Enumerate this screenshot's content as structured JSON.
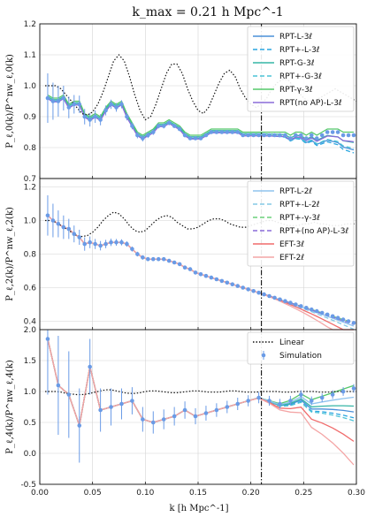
{
  "figure": {
    "title": "k_max = 0.21 h Mpc^-1",
    "xlabel": "k [h Mpc^-1]"
  },
  "chart_data": [
    {
      "type": "line",
      "panel": "monopole",
      "ylabel": "P_ℓ,0(k)/P^nw_ℓ,0(k)",
      "xlim": [
        0.0,
        0.3
      ],
      "ylim": [
        0.7,
        1.2
      ],
      "yticks": [
        0.7,
        0.8,
        0.9,
        1.0,
        1.1,
        1.2
      ],
      "grid": true,
      "vline_x": 0.21,
      "legend": {
        "placement": "top-right",
        "entries": [
          {
            "label": "RPT-L-3ℓ",
            "color": "#4a90d9",
            "dash": "solid"
          },
          {
            "label": "RPT+-L-3ℓ",
            "color": "#2aa6e0",
            "dash": "dashed"
          },
          {
            "label": "RPT-G-3ℓ",
            "color": "#35b5a6",
            "dash": "solid"
          },
          {
            "label": "RPT+-G-3ℓ",
            "color": "#4cc3d6",
            "dash": "dashed"
          },
          {
            "label": "RPT-γ-3ℓ",
            "color": "#55c86a",
            "dash": "solid"
          },
          {
            "label": "RPT(no AP)-L-3ℓ",
            "color": "#8a6bd9",
            "dash": "solid"
          }
        ]
      },
      "linear": {
        "x": [
          0.005,
          0.01,
          0.015,
          0.02,
          0.025,
          0.03,
          0.035,
          0.04,
          0.045,
          0.05,
          0.055,
          0.06,
          0.065,
          0.07,
          0.075,
          0.08,
          0.085,
          0.09,
          0.095,
          0.1,
          0.105,
          0.11,
          0.115,
          0.12,
          0.125,
          0.13,
          0.135,
          0.14,
          0.145,
          0.15,
          0.155,
          0.16,
          0.165,
          0.17,
          0.175,
          0.18,
          0.185,
          0.19,
          0.195,
          0.2,
          0.205,
          0.21,
          0.215,
          0.22,
          0.225,
          0.23,
          0.235,
          0.24,
          0.245,
          0.25,
          0.255,
          0.26,
          0.265,
          0.27,
          0.275,
          0.28,
          0.285,
          0.29,
          0.295,
          0.3
        ],
        "y": [
          1.0,
          1.0,
          1.0,
          0.99,
          0.97,
          0.95,
          0.93,
          0.91,
          0.905,
          0.915,
          0.94,
          0.98,
          1.03,
          1.08,
          1.1,
          1.08,
          1.03,
          0.97,
          0.92,
          0.89,
          0.9,
          0.94,
          0.99,
          1.04,
          1.07,
          1.07,
          1.04,
          0.99,
          0.95,
          0.92,
          0.91,
          0.93,
          0.97,
          1.01,
          1.04,
          1.05,
          1.03,
          0.99,
          0.96,
          0.94,
          0.93,
          0.94,
          0.96,
          0.99,
          1.01,
          1.02,
          1.02,
          1.0,
          0.98,
          0.96,
          0.95,
          0.95,
          0.96,
          0.97,
          0.98,
          0.99,
          0.98,
          0.97,
          0.96,
          0.95
        ]
      },
      "simulation": {
        "x": [
          0.0075,
          0.0125,
          0.0175,
          0.0225,
          0.0275,
          0.0325,
          0.0375,
          0.0425,
          0.0475,
          0.0525,
          0.0575,
          0.0625,
          0.0675,
          0.0725,
          0.0775,
          0.0825,
          0.0875,
          0.0925,
          0.0975,
          0.1025,
          0.1075,
          0.1125,
          0.1175,
          0.1225,
          0.1275,
          0.1325,
          0.1375,
          0.1425,
          0.1475,
          0.1525,
          0.1575,
          0.1625,
          0.1675,
          0.1725,
          0.1775,
          0.1825,
          0.1875,
          0.1925,
          0.1975,
          0.2025,
          0.2075,
          0.2125,
          0.2175,
          0.2225,
          0.2275,
          0.2325,
          0.2375,
          0.2425,
          0.2475,
          0.2525,
          0.2575,
          0.2625,
          0.2675,
          0.2725,
          0.2775,
          0.2825,
          0.2875,
          0.2925,
          0.2975
        ],
        "y": [
          0.96,
          0.95,
          0.95,
          0.96,
          0.93,
          0.94,
          0.94,
          0.9,
          0.89,
          0.9,
          0.89,
          0.92,
          0.94,
          0.93,
          0.94,
          0.9,
          0.87,
          0.84,
          0.83,
          0.84,
          0.85,
          0.87,
          0.87,
          0.88,
          0.87,
          0.86,
          0.84,
          0.83,
          0.83,
          0.83,
          0.84,
          0.85,
          0.85,
          0.85,
          0.85,
          0.85,
          0.85,
          0.84,
          0.84,
          0.84,
          0.84,
          0.84,
          0.84,
          0.84,
          0.84,
          0.84,
          0.83,
          0.84,
          0.84,
          0.83,
          0.84,
          0.83,
          0.84,
          0.85,
          0.85,
          0.85,
          0.84,
          0.84,
          0.84
        ],
        "err": [
          0.08,
          0.06,
          0.05,
          0.04,
          0.035,
          0.03,
          0.028,
          0.025,
          0.022,
          0.02,
          0.018,
          0.016,
          0.015,
          0.014,
          0.013,
          0.012,
          0.011,
          0.01,
          0.01,
          0.009,
          0.009,
          0.008,
          0.008,
          0.008,
          0.007,
          0.007,
          0.007,
          0.006,
          0.006,
          0.006,
          0.006,
          0.005,
          0.005,
          0.005,
          0.005,
          0.005,
          0.005,
          0.005,
          0.005,
          0.005,
          0.005,
          0.005,
          0.005,
          0.005,
          0.005,
          0.005,
          0.005,
          0.005,
          0.005,
          0.005,
          0.005,
          0.005,
          0.005,
          0.005,
          0.005,
          0.005,
          0.005,
          0.005,
          0.005
        ]
      },
      "models": [
        {
          "color": "#4a90d9",
          "dash": "solid",
          "y_base_offset": 0.0,
          "tail": -0.05
        },
        {
          "color": "#2aa6e0",
          "dash": "dashed",
          "y_base_offset": 0.0,
          "tail": -0.06
        },
        {
          "color": "#35b5a6",
          "dash": "solid",
          "y_base_offset": 0.005,
          "tail": -0.03
        },
        {
          "color": "#4cc3d6",
          "dash": "dashed",
          "y_base_offset": 0.0,
          "tail": -0.045
        },
        {
          "color": "#55c86a",
          "dash": "solid",
          "y_base_offset": 0.01,
          "tail": 0.0
        },
        {
          "color": "#8a6bd9",
          "dash": "solid",
          "y_base_offset": -0.002,
          "tail": -0.02
        }
      ]
    },
    {
      "type": "line",
      "panel": "quadrupole",
      "ylabel": "P_ℓ,2(k)/P^nw_ℓ,2(k)",
      "xlim": [
        0.0,
        0.3
      ],
      "ylim": [
        0.35,
        1.25
      ],
      "yticks": [
        0.4,
        0.6,
        0.8,
        1.0,
        1.2
      ],
      "grid": true,
      "vline_x": 0.21,
      "legend": {
        "placement": "top-right",
        "entries": [
          {
            "label": "RPT-L-2ℓ",
            "color": "#8fc3ee",
            "dash": "solid"
          },
          {
            "label": "RPT+-L-2ℓ",
            "color": "#84c9e6",
            "dash": "dashed"
          },
          {
            "label": "RPT+-γ-3ℓ",
            "color": "#6cd07a",
            "dash": "dashed"
          },
          {
            "label": "RPT+(no AP)-L-3ℓ",
            "color": "#8a6bd9",
            "dash": "dashed"
          },
          {
            "label": "EFT-3ℓ",
            "color": "#f06b6b",
            "dash": "solid"
          },
          {
            "label": "EFT-2ℓ",
            "color": "#f4a5a5",
            "dash": "solid"
          }
        ]
      },
      "linear": {
        "x": [
          0.005,
          0.01,
          0.015,
          0.02,
          0.025,
          0.03,
          0.035,
          0.04,
          0.045,
          0.05,
          0.055,
          0.06,
          0.065,
          0.07,
          0.075,
          0.08,
          0.085,
          0.09,
          0.095,
          0.1,
          0.105,
          0.11,
          0.115,
          0.12,
          0.125,
          0.13,
          0.135,
          0.14,
          0.145,
          0.15,
          0.155,
          0.16,
          0.165,
          0.17,
          0.175,
          0.18,
          0.185,
          0.19,
          0.195,
          0.2,
          0.205,
          0.21,
          0.215,
          0.22,
          0.225,
          0.23,
          0.235,
          0.24,
          0.245,
          0.25,
          0.255,
          0.26,
          0.265,
          0.27,
          0.275,
          0.28,
          0.285,
          0.29,
          0.295,
          0.3
        ],
        "y": [
          1.0,
          1.0,
          0.99,
          0.97,
          0.95,
          0.93,
          0.91,
          0.905,
          0.91,
          0.93,
          0.96,
          1.0,
          1.03,
          1.05,
          1.04,
          1.01,
          0.97,
          0.94,
          0.93,
          0.94,
          0.97,
          1.0,
          1.02,
          1.03,
          1.02,
          0.99,
          0.97,
          0.95,
          0.95,
          0.96,
          0.98,
          1.0,
          1.01,
          1.01,
          1.0,
          0.98,
          0.97,
          0.96,
          0.96,
          0.97,
          0.98,
          0.99,
          1.0,
          1.0,
          0.99,
          0.98,
          0.97,
          0.97,
          0.97,
          0.98,
          0.98,
          0.99,
          0.98,
          0.98,
          0.97,
          0.97,
          0.97,
          0.98,
          0.98,
          0.98
        ]
      },
      "simulation": {
        "x": [
          0.0075,
          0.0125,
          0.0175,
          0.0225,
          0.0275,
          0.0325,
          0.0375,
          0.0425,
          0.0475,
          0.0525,
          0.0575,
          0.0625,
          0.0675,
          0.0725,
          0.0775,
          0.0825,
          0.0875,
          0.0925,
          0.0975,
          0.1025,
          0.1075,
          0.1125,
          0.1175,
          0.1225,
          0.1275,
          0.1325,
          0.1375,
          0.1425,
          0.1475,
          0.1525,
          0.1575,
          0.1625,
          0.1675,
          0.1725,
          0.1775,
          0.1825,
          0.1875,
          0.1925,
          0.1975,
          0.2025,
          0.2075,
          0.2125,
          0.2175,
          0.2225,
          0.2275,
          0.2325,
          0.2375,
          0.2425,
          0.2475,
          0.2525,
          0.2575,
          0.2625,
          0.2675,
          0.2725,
          0.2775,
          0.2825,
          0.2875,
          0.2925,
          0.2975
        ],
        "y": [
          1.03,
          1.0,
          0.98,
          0.96,
          0.95,
          0.92,
          0.9,
          0.86,
          0.87,
          0.86,
          0.85,
          0.86,
          0.87,
          0.87,
          0.87,
          0.86,
          0.83,
          0.8,
          0.78,
          0.77,
          0.77,
          0.77,
          0.77,
          0.76,
          0.75,
          0.74,
          0.72,
          0.71,
          0.69,
          0.68,
          0.67,
          0.66,
          0.65,
          0.64,
          0.63,
          0.62,
          0.61,
          0.6,
          0.59,
          0.58,
          0.57,
          0.56,
          0.55,
          0.54,
          0.53,
          0.52,
          0.51,
          0.5,
          0.49,
          0.48,
          0.47,
          0.46,
          0.45,
          0.44,
          0.43,
          0.42,
          0.41,
          0.4,
          0.39
        ],
        "err": [
          0.12,
          0.1,
          0.08,
          0.07,
          0.06,
          0.05,
          0.045,
          0.04,
          0.035,
          0.03,
          0.028,
          0.025,
          0.022,
          0.02,
          0.018,
          0.016,
          0.015,
          0.014,
          0.013,
          0.012,
          0.011,
          0.01,
          0.01,
          0.009,
          0.009,
          0.008,
          0.008,
          0.008,
          0.007,
          0.007,
          0.007,
          0.007,
          0.006,
          0.006,
          0.006,
          0.006,
          0.006,
          0.006,
          0.006,
          0.006,
          0.006,
          0.006,
          0.006,
          0.006,
          0.006,
          0.006,
          0.006,
          0.006,
          0.006,
          0.006,
          0.006,
          0.006,
          0.006,
          0.006,
          0.006,
          0.006,
          0.006,
          0.006,
          0.006
        ]
      },
      "models": [
        {
          "color": "#8fc3ee",
          "dash": "solid",
          "tail": -0.02
        },
        {
          "color": "#84c9e6",
          "dash": "dashed",
          "tail": -0.04
        },
        {
          "color": "#6cd07a",
          "dash": "dashed",
          "tail": 0.0
        },
        {
          "color": "#8a6bd9",
          "dash": "dashed",
          "tail": -0.01
        },
        {
          "color": "#f06b6b",
          "dash": "solid",
          "tail": -0.08
        },
        {
          "color": "#f4a5a5",
          "dash": "solid",
          "tail": -0.14
        }
      ]
    },
    {
      "type": "line",
      "panel": "hexadecapole",
      "ylabel": "P_ℓ,4(k)/P^nw_ℓ,4(k)",
      "xlim": [
        0.0,
        0.3
      ],
      "ylim": [
        -0.5,
        2.0
      ],
      "yticks": [
        -0.5,
        0.0,
        0.5,
        1.0,
        1.5,
        2.0
      ],
      "xticks": [
        0.0,
        0.05,
        0.1,
        0.15,
        0.2,
        0.25,
        0.3
      ],
      "xtick_labels": [
        "0.00",
        "0.05",
        "0.10",
        "0.15",
        "0.20",
        "0.25",
        "0.30"
      ],
      "grid": true,
      "vline_x": 0.21,
      "legend": {
        "placement": "top-right",
        "entries": [
          {
            "label": "Linear",
            "color": "#111111",
            "dash": "dotted",
            "kind": "line"
          },
          {
            "label": "Simulation",
            "color": "#6a9be6",
            "kind": "errorbar"
          }
        ]
      },
      "linear": {
        "x": [
          0.005,
          0.01,
          0.015,
          0.02,
          0.025,
          0.03,
          0.035,
          0.04,
          0.045,
          0.05,
          0.055,
          0.06,
          0.065,
          0.07,
          0.075,
          0.08,
          0.085,
          0.09,
          0.095,
          0.1,
          0.105,
          0.11,
          0.115,
          0.12,
          0.125,
          0.13,
          0.135,
          0.14,
          0.145,
          0.15,
          0.155,
          0.16,
          0.165,
          0.17,
          0.175,
          0.18,
          0.185,
          0.19,
          0.195,
          0.2,
          0.205,
          0.21,
          0.215,
          0.22,
          0.225,
          0.23,
          0.235,
          0.24,
          0.245,
          0.25,
          0.255,
          0.26,
          0.265,
          0.27,
          0.275,
          0.28,
          0.285,
          0.29,
          0.295,
          0.3
        ],
        "y": [
          1.0,
          1.0,
          1.0,
          0.99,
          0.97,
          0.96,
          0.95,
          0.95,
          0.96,
          0.98,
          1.0,
          1.02,
          1.03,
          1.02,
          1.0,
          0.98,
          0.97,
          0.97,
          0.98,
          1.0,
          1.01,
          1.01,
          1.0,
          0.99,
          0.98,
          0.98,
          0.99,
          1.0,
          1.01,
          1.01,
          1.0,
          0.99,
          0.99,
          0.99,
          1.0,
          1.01,
          1.01,
          1.0,
          0.99,
          0.99,
          0.99,
          1.0,
          1.0,
          1.0,
          1.0,
          0.99,
          0.99,
          0.99,
          1.0,
          1.0,
          1.0,
          1.0,
          0.99,
          0.99,
          0.99,
          1.0,
          1.0,
          1.0,
          1.0,
          1.0
        ]
      },
      "simulation": {
        "x": [
          0.0075,
          0.0175,
          0.0275,
          0.0375,
          0.0475,
          0.0575,
          0.0675,
          0.0775,
          0.0875,
          0.0975,
          0.1075,
          0.1175,
          0.1275,
          0.1375,
          0.1475,
          0.1575,
          0.1675,
          0.1775,
          0.1875,
          0.1975,
          0.2075,
          0.2175,
          0.2275,
          0.2375,
          0.2475,
          0.2575,
          0.2675,
          0.2775,
          0.2875,
          0.2975
        ],
        "y": [
          1.85,
          1.1,
          0.95,
          0.45,
          1.4,
          0.7,
          0.75,
          0.8,
          0.85,
          0.55,
          0.5,
          0.55,
          0.6,
          0.7,
          0.6,
          0.65,
          0.7,
          0.75,
          0.8,
          0.85,
          0.9,
          0.85,
          0.8,
          0.85,
          0.95,
          0.85,
          0.9,
          0.95,
          1.0,
          1.05
        ],
        "err": [
          0.9,
          0.8,
          0.7,
          0.6,
          0.45,
          0.35,
          0.3,
          0.25,
          0.22,
          0.2,
          0.18,
          0.16,
          0.15,
          0.14,
          0.13,
          0.12,
          0.11,
          0.1,
          0.1,
          0.09,
          0.09,
          0.08,
          0.08,
          0.08,
          0.07,
          0.07,
          0.07,
          0.07,
          0.07,
          0.07
        ]
      },
      "models": [
        {
          "color": "#4a90d9",
          "dash": "solid",
          "tail": -0.4
        },
        {
          "color": "#2aa6e0",
          "dash": "dashed",
          "tail": -0.5
        },
        {
          "color": "#35b5a6",
          "dash": "solid",
          "tail": -0.3
        },
        {
          "color": "#4cc3d6",
          "dash": "dashed",
          "tail": -0.55
        },
        {
          "color": "#55c86a",
          "dash": "solid",
          "tail": 0.05
        },
        {
          "color": "#8fc3ee",
          "dash": "solid",
          "tail": -0.15
        },
        {
          "color": "#f06b6b",
          "dash": "solid",
          "tail": -0.9
        },
        {
          "color": "#f4a5a5",
          "dash": "solid",
          "tail": -1.3
        }
      ]
    }
  ]
}
